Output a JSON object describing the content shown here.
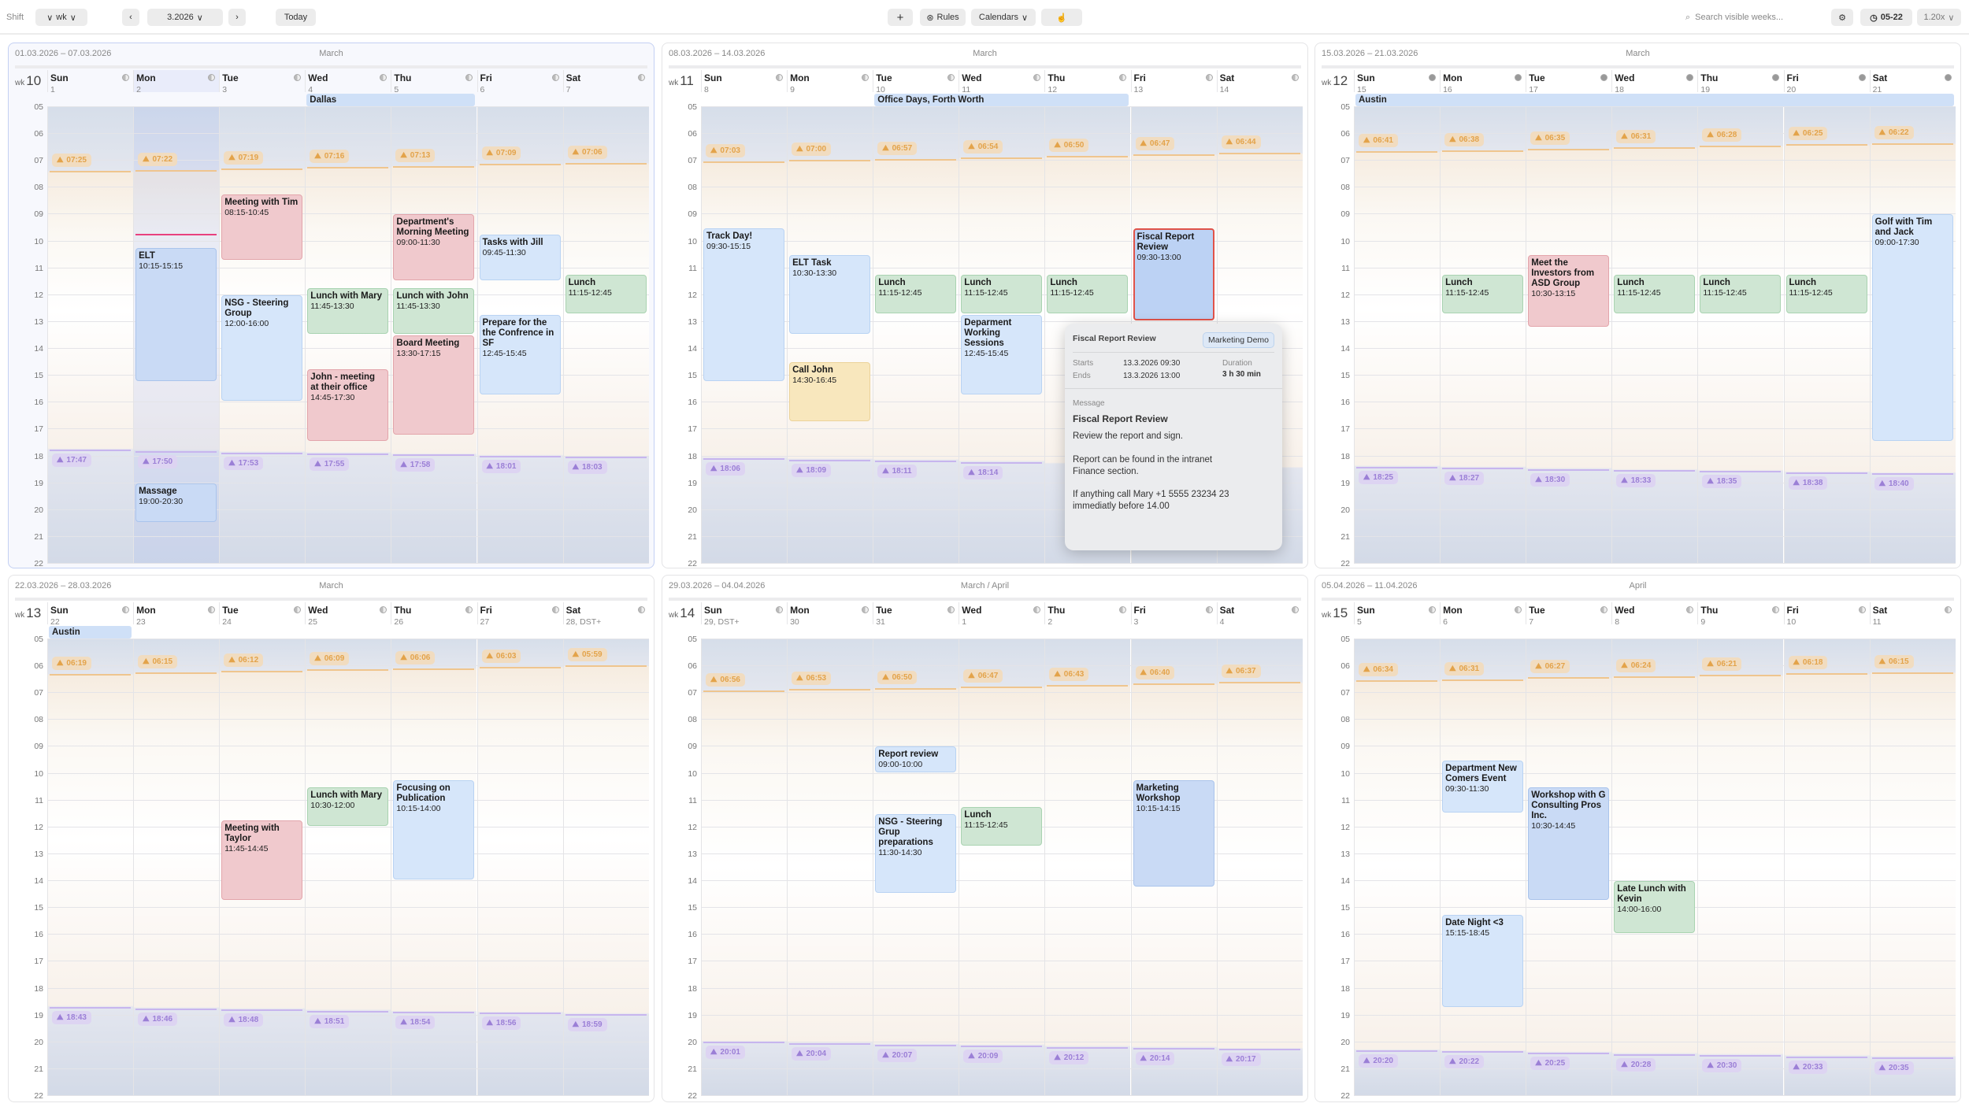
{
  "toolbar": {
    "shift_label": "Shift",
    "unit": "wk",
    "period": "3.2026",
    "today": "Today",
    "add": "+",
    "rules": "Rules",
    "calendars": "Calendars",
    "search_placeholder": "Search visible weeks...",
    "hours": "05-22",
    "zoom": "1.20x"
  },
  "colors": {
    "blue": "#c9daf5",
    "lightblue": "#d6e6fa",
    "green": "#cfe6d3",
    "red": "#f0c9cd",
    "yellow": "#f8e7bd",
    "sunrise": "#e3a34a",
    "sunset": "#9b7fd6",
    "now": "#e8407e",
    "selected": "#e0534a"
  },
  "hours": [
    "05",
    "06",
    "07",
    "08",
    "09",
    "10",
    "11",
    "12",
    "13",
    "14",
    "15",
    "16",
    "17",
    "18",
    "19",
    "20",
    "21",
    "22"
  ],
  "now": {
    "week": 0,
    "day": 1,
    "time": "09:45"
  },
  "weeks": [
    {
      "range": "01.03.2026 – 07.03.2026",
      "month": "March",
      "wk": "10",
      "current": true,
      "today_day": 1,
      "days": [
        [
          "Sun",
          "1"
        ],
        [
          "Mon",
          "2"
        ],
        [
          "Tue",
          "3"
        ],
        [
          "Wed",
          "4"
        ],
        [
          "Thu",
          "5"
        ],
        [
          "Fri",
          "6"
        ],
        [
          "Sat",
          "7"
        ]
      ],
      "allday": [
        {
          "title": "Dallas",
          "from": 3,
          "to": 4
        }
      ],
      "sunrise": [
        "07:25",
        "07:22",
        "07:19",
        "07:16",
        "07:13",
        "07:09",
        "07:06"
      ],
      "sunset": [
        "17:47",
        "17:50",
        "17:53",
        "17:55",
        "17:58",
        "18:01",
        "18:03"
      ],
      "events": [
        {
          "day": 1,
          "title": "ELT",
          "time": "10:15-15:15",
          "color": "blue"
        },
        {
          "day": 1,
          "title": "Massage",
          "time": "19:00-20:30",
          "color": "blue"
        },
        {
          "day": 2,
          "title": "Meeting with Tim",
          "time": "08:15-10:45",
          "color": "red"
        },
        {
          "day": 2,
          "title": "NSG - Steering Group",
          "time": "12:00-16:00",
          "color": "lightblue"
        },
        {
          "day": 3,
          "title": "Lunch with Mary",
          "time": "11:45-13:30",
          "color": "green"
        },
        {
          "day": 3,
          "title": "John - meeting at their office",
          "time": "14:45-17:30",
          "color": "red"
        },
        {
          "day": 4,
          "title": "Department's Morning Meeting",
          "time": "09:00-11:30",
          "color": "red"
        },
        {
          "day": 4,
          "title": "Lunch with John",
          "time": "11:45-13:30",
          "color": "green"
        },
        {
          "day": 4,
          "title": "Board Meeting",
          "time": "13:30-17:15",
          "color": "red"
        },
        {
          "day": 5,
          "title": "Tasks with Jill",
          "time": "09:45-11:30",
          "color": "lightblue"
        },
        {
          "day": 5,
          "title": "Prepare for the the Confrence in SF",
          "time": "12:45-15:45",
          "color": "lightblue"
        },
        {
          "day": 6,
          "title": "Lunch",
          "time": "11:15-12:45",
          "color": "green"
        }
      ]
    },
    {
      "range": "08.03.2026 – 14.03.2026",
      "month": "March",
      "wk": "11",
      "days": [
        [
          "Sun",
          "8"
        ],
        [
          "Mon",
          "9"
        ],
        [
          "Tue",
          "10"
        ],
        [
          "Wed",
          "11"
        ],
        [
          "Thu",
          "12"
        ],
        [
          "Fri",
          "13"
        ],
        [
          "Sat",
          "14"
        ]
      ],
      "allday": [
        {
          "title": "Office Days, Forth Worth",
          "from": 2,
          "to": 4
        }
      ],
      "sunrise": [
        "07:03",
        "07:00",
        "06:57",
        "06:54",
        "06:50",
        "06:47",
        "06:44"
      ],
      "sunset": [
        "18:06",
        "18:09",
        "18:11",
        "18:14",
        null,
        null,
        null
      ],
      "events": [
        {
          "day": 0,
          "title": "Track Day!",
          "time": "09:30-15:15",
          "color": "lightblue"
        },
        {
          "day": 1,
          "title": "ELT Task",
          "time": "10:30-13:30",
          "color": "lightblue"
        },
        {
          "day": 1,
          "title": "Call John",
          "time": "14:30-16:45",
          "color": "yellow"
        },
        {
          "day": 2,
          "title": "Lunch",
          "time": "11:15-12:45",
          "color": "green"
        },
        {
          "day": 3,
          "title": "Lunch",
          "time": "11:15-12:45",
          "color": "green"
        },
        {
          "day": 3,
          "title": "Deparment Working Sessions",
          "time": "12:45-15:45",
          "color": "lightblue"
        },
        {
          "day": 4,
          "title": "Lunch",
          "time": "11:15-12:45",
          "color": "green"
        },
        {
          "day": 5,
          "title": "Fiscal Report Review",
          "time": "09:30-13:00",
          "color": "blue",
          "selected": true
        }
      ]
    },
    {
      "range": "15.03.2026 – 21.03.2026",
      "month": "March",
      "wk": "12",
      "full_moon": true,
      "days": [
        [
          "Sun",
          "15"
        ],
        [
          "Mon",
          "16"
        ],
        [
          "Tue",
          "17"
        ],
        [
          "Wed",
          "18"
        ],
        [
          "Thu",
          "19"
        ],
        [
          "Fri",
          "20"
        ],
        [
          "Sat",
          "21"
        ]
      ],
      "allday": [
        {
          "title": "Austin",
          "from": 0,
          "to": 6
        }
      ],
      "sunrise": [
        "06:41",
        "06:38",
        "06:35",
        "06:31",
        "06:28",
        "06:25",
        "06:22"
      ],
      "sunset": [
        "18:25",
        "18:27",
        "18:30",
        "18:33",
        "18:35",
        "18:38",
        "18:40"
      ],
      "events": [
        {
          "day": 1,
          "title": "Lunch",
          "time": "11:15-12:45",
          "color": "green"
        },
        {
          "day": 2,
          "title": "Meet the Investors from ASD Group",
          "time": "10:30-13:15",
          "color": "red"
        },
        {
          "day": 3,
          "title": "Lunch",
          "time": "11:15-12:45",
          "color": "green"
        },
        {
          "day": 4,
          "title": "Lunch",
          "time": "11:15-12:45",
          "color": "green"
        },
        {
          "day": 5,
          "title": "Lunch",
          "time": "11:15-12:45",
          "color": "green"
        },
        {
          "day": 6,
          "title": "Golf with Tim and Jack",
          "time": "09:00-17:30",
          "color": "lightblue"
        }
      ]
    },
    {
      "range": "22.03.2026 – 28.03.2026",
      "month": "March",
      "wk": "13",
      "days": [
        [
          "Sun",
          "22"
        ],
        [
          "Mon",
          "23"
        ],
        [
          "Tue",
          "24"
        ],
        [
          "Wed",
          "25"
        ],
        [
          "Thu",
          "26"
        ],
        [
          "Fri",
          "27"
        ],
        [
          "Sat",
          "28, DST+"
        ]
      ],
      "allday": [
        {
          "title": "Austin",
          "from": 0,
          "to": 0
        }
      ],
      "sunrise": [
        "06:19",
        "06:15",
        "06:12",
        "06:09",
        "06:06",
        "06:03",
        "05:59"
      ],
      "sunset": [
        "18:43",
        "18:46",
        "18:48",
        "18:51",
        "18:54",
        "18:56",
        "18:59"
      ],
      "events": [
        {
          "day": 2,
          "title": "Meeting with Taylor",
          "time": "11:45-14:45",
          "color": "red"
        },
        {
          "day": 3,
          "title": "Lunch with Mary",
          "time": "10:30-12:00",
          "color": "green"
        },
        {
          "day": 4,
          "title": "Focusing on Publication",
          "time": "10:15-14:00",
          "color": "lightblue"
        }
      ]
    },
    {
      "range": "29.03.2026 – 04.04.2026",
      "month": "March / April",
      "wk": "14",
      "days": [
        [
          "Sun",
          "29, DST+"
        ],
        [
          "Mon",
          "30"
        ],
        [
          "Tue",
          "31"
        ],
        [
          "Wed",
          "1"
        ],
        [
          "Thu",
          "2"
        ],
        [
          "Fri",
          "3"
        ],
        [
          "Sat",
          "4"
        ]
      ],
      "allday": [],
      "sunrise": [
        "06:56",
        "06:53",
        "06:50",
        "06:47",
        "06:43",
        "06:40",
        "06:37"
      ],
      "sunset": [
        "20:01",
        "20:04",
        "20:07",
        "20:09",
        "20:12",
        "20:14",
        "20:17"
      ],
      "events": [
        {
          "day": 2,
          "title": "Report review",
          "time": "09:00-10:00",
          "color": "lightblue"
        },
        {
          "day": 2,
          "title": "NSG - Steering Grup preparations",
          "time": "11:30-14:30",
          "color": "lightblue"
        },
        {
          "day": 3,
          "title": "Lunch",
          "time": "11:15-12:45",
          "color": "green"
        },
        {
          "day": 5,
          "title": "Marketing Workshop",
          "time": "10:15-14:15",
          "color": "blue"
        }
      ]
    },
    {
      "range": "05.04.2026 – 11.04.2026",
      "month": "April",
      "wk": "15",
      "days": [
        [
          "Sun",
          "5"
        ],
        [
          "Mon",
          "6"
        ],
        [
          "Tue",
          "7"
        ],
        [
          "Wed",
          "8"
        ],
        [
          "Thu",
          "9"
        ],
        [
          "Fri",
          "10"
        ],
        [
          "Sat",
          "11"
        ]
      ],
      "allday": [],
      "sunrise": [
        "06:34",
        "06:31",
        "06:27",
        "06:24",
        "06:21",
        "06:18",
        "06:15"
      ],
      "sunset": [
        "20:20",
        "20:22",
        "20:25",
        "20:28",
        "20:30",
        "20:33",
        "20:35"
      ],
      "events": [
        {
          "day": 1,
          "title": "Department New Comers Event",
          "time": "09:30-11:30",
          "color": "lightblue"
        },
        {
          "day": 1,
          "title": "Date Night <3",
          "time": "15:15-18:45",
          "color": "lightblue"
        },
        {
          "day": 2,
          "title": "Workshop with G Consulting Pros Inc.",
          "time": "10:30-14:45",
          "color": "blue"
        },
        {
          "day": 3,
          "title": "Late Lunch with Kevin",
          "time": "14:00-16:00",
          "color": "green"
        }
      ]
    }
  ],
  "popover": {
    "title": "Fiscal Report Review",
    "calendar": "Marketing Demo",
    "starts_label": "Starts",
    "starts": "13.3.2026 09:30",
    "ends_label": "Ends",
    "ends": "13.3.2026 13:00",
    "duration_label": "Duration",
    "duration": "3 h 30 min",
    "message_label": "Message",
    "message_title": "Fiscal Report Review",
    "message_lines": [
      "Review the report and sign.",
      "Report can be found in the intranet Finance section.",
      "If anything call Mary +1 5555 23234 23 immediatly before 14.00"
    ]
  }
}
